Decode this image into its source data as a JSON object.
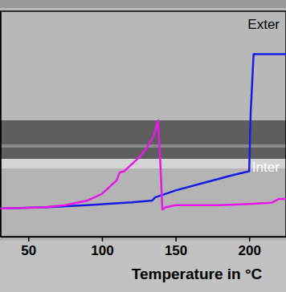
{
  "chart_data": {
    "type": "line",
    "x_label": "Temperature in °C",
    "xlim": [
      31,
      225
    ],
    "xticks": [
      50,
      100,
      150,
      200
    ],
    "ylim": [
      0,
      100
    ],
    "tick_labels": "x",
    "series": [
      {
        "color": "#1a1ae6",
        "x": [
          31,
          60,
          90,
          120,
          134,
          136,
          150,
          170,
          190,
          200,
          201,
          203,
          206,
          225
        ],
        "values": [
          12.5,
          13,
          14,
          15.2,
          16,
          17.4,
          20.5,
          24,
          27.5,
          29,
          55,
          81,
          81,
          81
        ]
      },
      {
        "color": "#e619e6",
        "x": [
          31,
          60,
          75,
          90,
          100,
          105,
          110,
          112,
          115,
          120,
          125,
          130,
          135,
          138,
          139.5,
          141,
          143,
          150,
          180,
          200,
          215,
          220,
          225
        ],
        "values": [
          12.5,
          13,
          14,
          16,
          19,
          22,
          25,
          28.5,
          29,
          32,
          35,
          39,
          44.5,
          51.6,
          35,
          12,
          13,
          14,
          14,
          14.5,
          15,
          16.7,
          16.7
        ]
      }
    ],
    "annotations": [
      {
        "text": "Exter",
        "x": 199,
        "y": 92,
        "color": "#000000"
      },
      {
        "text": "Inter",
        "x": 202,
        "y": 29,
        "color": "#ffffff"
      }
    ]
  }
}
